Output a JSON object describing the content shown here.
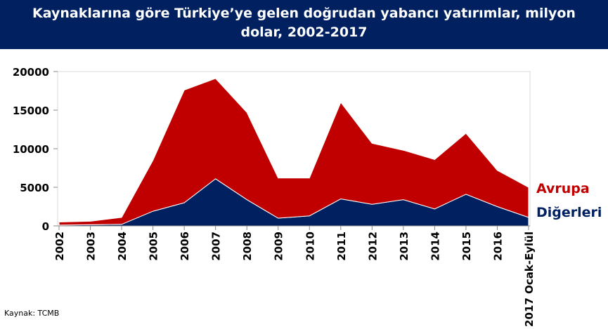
{
  "chart_data": {
    "type": "stacked-area",
    "title": "Kaynaklarına göre Türkiye’ye gelen doğrudan yabancı yatırımlar, milyon dolar, 2002-2017",
    "categories": [
      "2002",
      "2003",
      "2004",
      "2005",
      "2006",
      "2007",
      "2008",
      "2009",
      "2010",
      "2011",
      "2012",
      "2013",
      "2014",
      "2015",
      "2016",
      "2017 Ocak-Eylül"
    ],
    "series": [
      {
        "name": "Diğerleri",
        "color": "#002060",
        "values": [
          100,
          150,
          200,
          1900,
          3000,
          6100,
          3400,
          1000,
          1300,
          3500,
          2800,
          3400,
          2200,
          4100,
          2500,
          1100
        ]
      },
      {
        "name": "Avrupa",
        "color": "#c00000",
        "values": [
          400,
          450,
          900,
          6600,
          14600,
          13000,
          11300,
          5200,
          4900,
          12500,
          7900,
          6400,
          6400,
          7900,
          4700,
          3900
        ]
      }
    ],
    "ylim": [
      0,
      20000
    ],
    "yticks": [
      0,
      5000,
      10000,
      15000,
      20000
    ],
    "source": "Kaynak:  TCMB"
  }
}
